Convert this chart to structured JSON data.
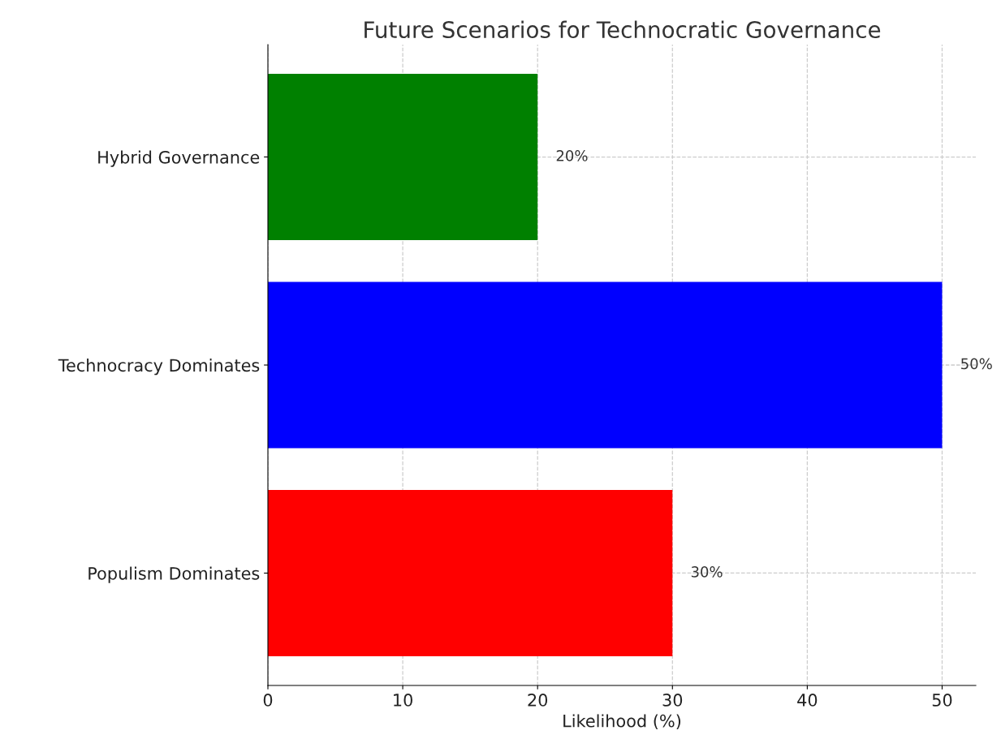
{
  "chart_data": {
    "type": "bar",
    "orientation": "horizontal",
    "title": "Future Scenarios for Technocratic Governance",
    "xlabel": "Likelihood (%)",
    "categories": [
      "Hybrid Governance",
      "Technocracy Dominates",
      "Populism Dominates"
    ],
    "values": [
      20,
      50,
      30
    ],
    "colors": [
      "#008000",
      "#0000ff",
      "#ff0000"
    ],
    "value_labels": [
      "20%",
      "50%",
      "30%"
    ],
    "xlim": [
      0,
      52.5
    ],
    "xticks": [
      0,
      10,
      20,
      30,
      40,
      50
    ],
    "grid": true,
    "line_style": "dashed"
  }
}
